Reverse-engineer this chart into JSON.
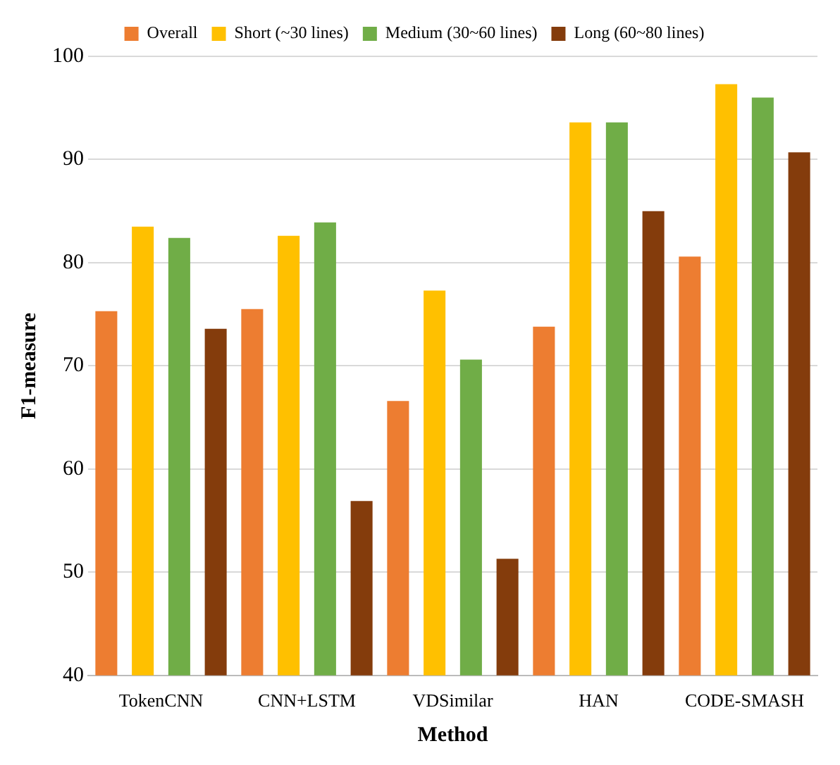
{
  "chart_data": {
    "type": "bar",
    "xlabel": "Method",
    "ylabel": "F1-measure",
    "categories": [
      "TokenCNN",
      "CNN+LSTM",
      "VDSimilar",
      "HAN",
      "CODE-SMASH"
    ],
    "series": [
      {
        "name": "Overall",
        "color": "#ed7d31",
        "values": [
          75.3,
          75.5,
          66.6,
          73.8,
          80.6
        ]
      },
      {
        "name": "Short (~30 lines)",
        "color": "#ffc000",
        "values": [
          83.5,
          82.6,
          77.3,
          93.6,
          97.3
        ]
      },
      {
        "name": "Medium (30~60 lines)",
        "color": "#70ad47",
        "values": [
          82.4,
          83.9,
          70.6,
          93.6,
          96.0
        ]
      },
      {
        "name": "Long (60~80 lines)",
        "color": "#843c0c",
        "values": [
          73.6,
          56.9,
          51.3,
          85.0,
          90.7
        ]
      }
    ],
    "ylim": [
      40,
      100
    ],
    "yticks": [
      40,
      50,
      60,
      70,
      80,
      90,
      100
    ],
    "grid": "y",
    "legend": "top"
  }
}
